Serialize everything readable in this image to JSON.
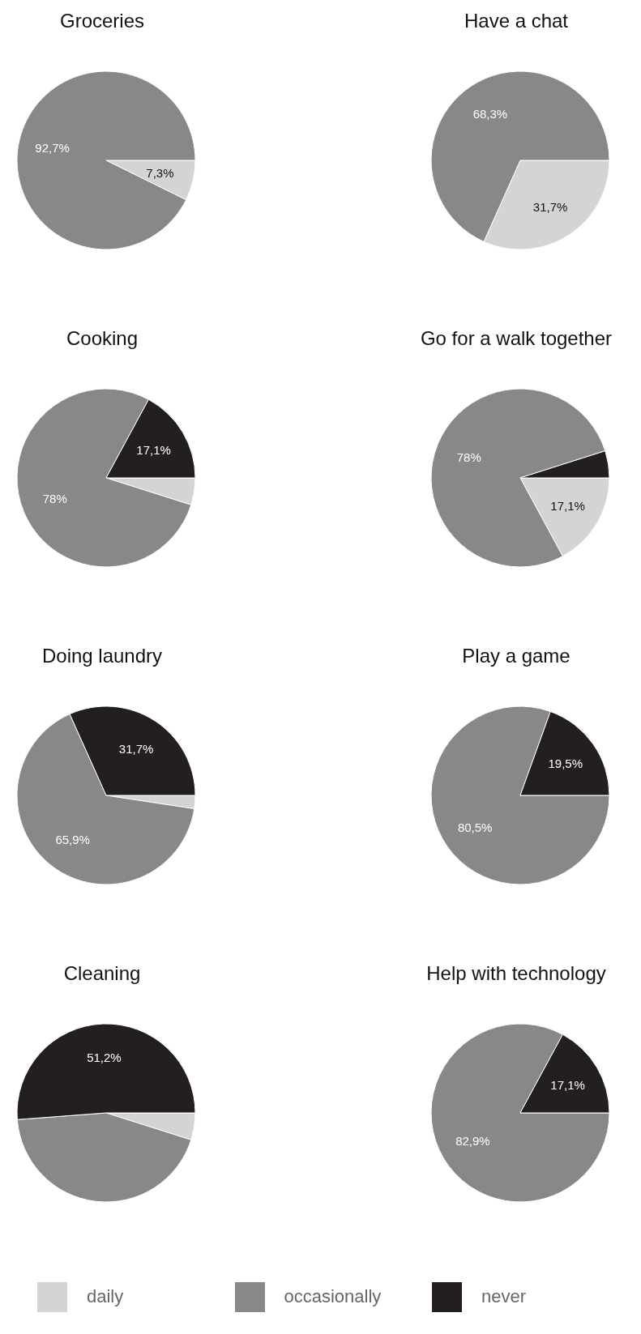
{
  "chart_data": [
    {
      "type": "pie",
      "title": "Groceries",
      "categories": [
        null,
        null
      ],
      "values": [
        7.3,
        92.7
      ],
      "colors": [
        "#d3d4d3",
        "#888889"
      ],
      "value_labels": [
        "7,3%",
        "92,7%"
      ]
    },
    {
      "type": "pie",
      "title": "Have a chat",
      "categories": [
        null,
        null
      ],
      "values": [
        31.7,
        68.3
      ],
      "colors": [
        "#d3d4d3",
        "#888889"
      ],
      "value_labels": [
        "31,7%",
        "68,3%"
      ]
    },
    {
      "type": "pie",
      "title": "Cooking",
      "categories": [
        "daily",
        "occasionally",
        "never"
      ],
      "values": [
        4.9,
        78,
        17.1
      ],
      "colors": [
        "#d3d4d3",
        "#888889",
        "#231f20"
      ],
      "value_labels": [
        null,
        "78%",
        "17,1%"
      ],
      "legend": "bottom"
    },
    {
      "type": "pie",
      "title": "Go for a walk together",
      "categories": [
        null,
        null,
        null
      ],
      "values": [
        17.1,
        78,
        4.9
      ],
      "colors": [
        "#d3d4d3",
        "#888889",
        "#231f20"
      ],
      "value_labels": [
        "17,1%",
        "78%",
        null
      ]
    },
    {
      "type": "pie",
      "title": "Doing laundry",
      "categories": [
        null,
        null,
        null
      ],
      "values": [
        2.4,
        65.9,
        31.7
      ],
      "colors": [
        "#d3d4d3",
        "#888889",
        "#231f20"
      ],
      "value_labels": [
        null,
        "65,9%",
        "31,7%"
      ]
    },
    {
      "type": "pie",
      "title": "Play a game",
      "categories": [
        null,
        null
      ],
      "values": [
        80.5,
        19.5
      ],
      "colors": [
        "#888889",
        "#231f20"
      ],
      "value_labels": [
        "80,5%",
        "19,5%"
      ]
    },
    {
      "type": "pie",
      "title": "Cleaning",
      "categories": [
        null,
        null,
        null
      ],
      "values": [
        4.9,
        43.9,
        51.2
      ],
      "colors": [
        "#d3d4d3",
        "#888889",
        "#231f20"
      ],
      "value_labels": [
        null,
        null,
        "51,2%"
      ]
    },
    {
      "type": "pie",
      "title": "Help with technology",
      "categories": [
        null,
        null
      ],
      "values": [
        82.9,
        17.1
      ],
      "colors": [
        "#888889",
        "#231f20"
      ],
      "value_labels": [
        "82,9%",
        "17,1%"
      ]
    }
  ]
}
